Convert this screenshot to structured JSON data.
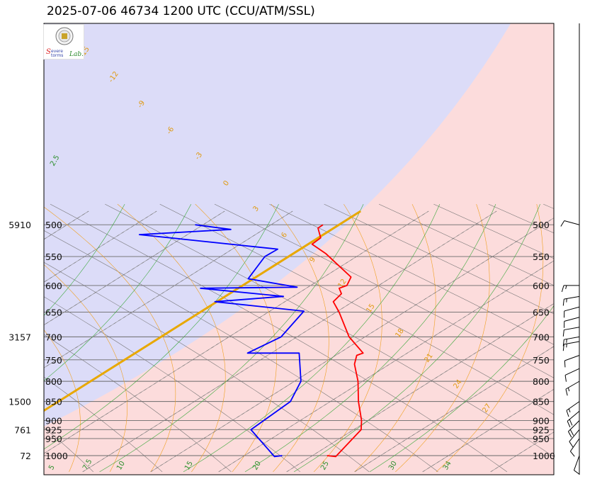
{
  "header": {
    "title": "2025-07-06 46734 1200 UTC (CCU/ATM/SSL)"
  },
  "logo": {
    "text_main": "Severe",
    "text_sub": "Storms",
    "text_lab": "Lab."
  },
  "chart_data": {
    "type": "line",
    "title": "2025-07-06 46734 1200 UTC (CCU/ATM/SSL)",
    "pressure_levels": [
      1000,
      950,
      925,
      900,
      850,
      800,
      750,
      700,
      650,
      600,
      550,
      500
    ],
    "pressure_labels": [
      "1000",
      "950",
      "925",
      "900",
      "850",
      "800",
      "750",
      "700",
      "650",
      "600",
      "550",
      "500"
    ],
    "height_labels": [
      {
        "p": 1000,
        "label": "72"
      },
      {
        "p": 925,
        "label": "761"
      },
      {
        "p": 850,
        "label": "1500"
      },
      {
        "p": 700,
        "label": "3157"
      },
      {
        "p": 500,
        "label": "5910"
      }
    ],
    "plim": [
      1000,
      500
    ],
    "xlim_at_1000hPa": [
      5,
      35
    ],
    "skew_deg_per_hPa": 0.0534,
    "isotherm_labels": [
      {
        "t": 5,
        "label": "5"
      },
      {
        "t": 7.5,
        "label": "7.5"
      },
      {
        "t": 10,
        "label": "10"
      },
      {
        "t": 15,
        "label": "15"
      },
      {
        "t": 20,
        "label": "20"
      },
      {
        "t": 25,
        "label": "25"
      },
      {
        "t": 30,
        "label": "30"
      },
      {
        "t": 34,
        "label": "34"
      }
    ],
    "theta_labels": [
      "27",
      "24",
      "21",
      "18",
      "15",
      "12",
      "9",
      "6",
      "3",
      "0",
      "-3",
      "-6",
      "-9",
      "-12",
      "-15"
    ],
    "mixing_ratio_label": "2.5",
    "series": [
      {
        "name": "Temperature",
        "color": "#ff0000",
        "points": [
          {
            "p": 1000,
            "t": 25.3
          },
          {
            "p": 1003,
            "t": 26.1
          },
          {
            "p": 925,
            "t": 23.8
          },
          {
            "p": 900,
            "t": 22.5
          },
          {
            "p": 850,
            "t": 19.6
          },
          {
            "p": 800,
            "t": 16.9
          },
          {
            "p": 760,
            "t": 14.5
          },
          {
            "p": 740,
            "t": 13.6
          },
          {
            "p": 735,
            "t": 13.8
          },
          {
            "p": 700,
            "t": 10.9
          },
          {
            "p": 650,
            "t": 7.5
          },
          {
            "p": 630,
            "t": 6.0
          },
          {
            "p": 615,
            "t": 5.8
          },
          {
            "p": 605,
            "t": 5.1
          },
          {
            "p": 600,
            "t": 5.4
          },
          {
            "p": 585,
            "t": 4.9
          },
          {
            "p": 545,
            "t": 0.9
          },
          {
            "p": 530,
            "t": -0.9
          },
          {
            "p": 520,
            "t": -0.8
          },
          {
            "p": 505,
            "t": -1.8
          },
          {
            "p": 500,
            "t": -1.7
          }
        ]
      },
      {
        "name": "Dewpoint",
        "color": "#0000ff",
        "points": [
          {
            "p": 1000,
            "t": 22.0
          },
          {
            "p": 1003,
            "t": 21.6
          },
          {
            "p": 925,
            "t": 15.7
          },
          {
            "p": 850,
            "t": 14.6
          },
          {
            "p": 800,
            "t": 12.7
          },
          {
            "p": 735,
            "t": 9.1
          },
          {
            "p": 735,
            "t": 5.3
          },
          {
            "p": 700,
            "t": 5.9
          },
          {
            "p": 648,
            "t": 4.8
          },
          {
            "p": 630,
            "t": -2.7
          },
          {
            "p": 620,
            "t": 1.8
          },
          {
            "p": 605,
            "t": -5.1
          },
          {
            "p": 603,
            "t": 1.9
          },
          {
            "p": 588,
            "t": -2.5
          },
          {
            "p": 550,
            "t": -3.3
          },
          {
            "p": 538,
            "t": -3.0
          },
          {
            "p": 515,
            "t": -14.4
          },
          {
            "p": 507,
            "t": -8.1
          },
          {
            "p": 500,
            "t": -11.1
          }
        ]
      }
    ],
    "wind_barbs": [
      {
        "p": 1000,
        "dir": 200,
        "kt": 10
      },
      {
        "p": 950,
        "dir": 215,
        "kt": 10
      },
      {
        "p": 925,
        "dir": 220,
        "kt": 10
      },
      {
        "p": 900,
        "dir": 225,
        "kt": 20
      },
      {
        "p": 875,
        "dir": 230,
        "kt": 20
      },
      {
        "p": 850,
        "dir": 235,
        "kt": 15
      },
      {
        "p": 800,
        "dir": 240,
        "kt": 15
      },
      {
        "p": 770,
        "dir": 245,
        "kt": 10
      },
      {
        "p": 740,
        "dir": 250,
        "kt": 10
      },
      {
        "p": 710,
        "dir": 260,
        "kt": 15
      },
      {
        "p": 700,
        "dir": 260,
        "kt": 15
      },
      {
        "p": 680,
        "dir": 260,
        "kt": 10
      },
      {
        "p": 660,
        "dir": 255,
        "kt": 10
      },
      {
        "p": 640,
        "dir": 255,
        "kt": 10
      },
      {
        "p": 620,
        "dir": 260,
        "kt": 15
      },
      {
        "p": 600,
        "dir": 270,
        "kt": 15
      },
      {
        "p": 500,
        "dir": 285,
        "kt": 10
      }
    ],
    "regions": [
      {
        "name": "cold",
        "color": "#dcdcf8"
      },
      {
        "name": "warm",
        "color": "#fcdcdc"
      }
    ],
    "grid": true
  }
}
